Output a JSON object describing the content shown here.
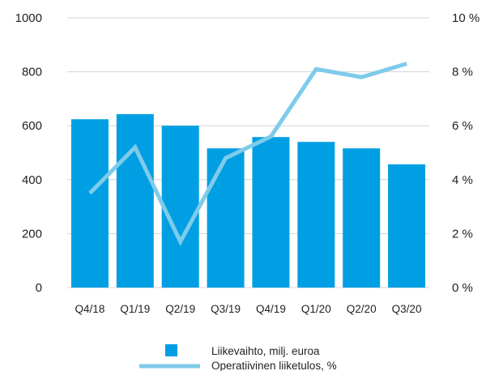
{
  "chart_data": {
    "type": "bar",
    "categories": [
      "Q4/18",
      "Q1/19",
      "Q2/19",
      "Q3/19",
      "Q4/19",
      "Q1/20",
      "Q2/20",
      "Q3/20"
    ],
    "series": [
      {
        "name": "Liikevaihto, milj. euroa",
        "type": "bar",
        "axis": "left",
        "color": "#009fe3",
        "values": [
          624,
          643,
          600,
          516,
          558,
          540,
          516,
          457
        ]
      },
      {
        "name": "Operatiivinen liiketulos, %",
        "type": "line",
        "axis": "right",
        "color": "#7ecbea",
        "values": [
          3.5,
          5.2,
          1.7,
          4.8,
          5.6,
          8.1,
          7.8,
          8.3
        ]
      }
    ],
    "yleft": {
      "min": 0,
      "max": 1000,
      "ticks": [
        0,
        200,
        400,
        600,
        800,
        1000
      ]
    },
    "yright": {
      "min": 0,
      "max": 10,
      "ticks": [
        "0 %",
        "2 %",
        "4 %",
        "6 %",
        "8 %",
        "10 %"
      ]
    },
    "grid": true,
    "legend_position": "bottom-center"
  }
}
